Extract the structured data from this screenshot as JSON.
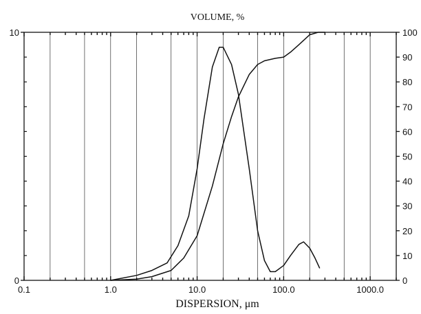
{
  "chart_data": {
    "type": "line",
    "title": "VOLUME, %",
    "xlabel": "DISPERSION, μm",
    "xscale": "log",
    "xlim": [
      0.1,
      2000
    ],
    "x_ticks": [
      0.1,
      1.0,
      10.0,
      100.0,
      1000.0
    ],
    "x_tick_labels": [
      "0.1",
      "1.0",
      "10.0",
      "100.0",
      "1000.0"
    ],
    "left_axis": {
      "range": [
        0,
        10
      ],
      "ticks": [
        0,
        10
      ],
      "tick_labels": [
        "0",
        "10"
      ]
    },
    "right_axis": {
      "range": [
        0,
        100
      ],
      "ticks": [
        0,
        10,
        20,
        30,
        40,
        50,
        60,
        70,
        80,
        90,
        100
      ],
      "tick_labels": [
        "0",
        "10",
        "20",
        "30",
        "40",
        "50",
        "60",
        "70",
        "80",
        "90",
        "100"
      ]
    },
    "grid": true,
    "series": [
      {
        "axis": "left",
        "x": [
          1.0,
          2.0,
          3.0,
          4.5,
          6.0,
          8.0,
          10.0,
          12.0,
          15.0,
          18.0,
          20.0,
          25.0,
          30.0,
          40.0,
          50.0,
          60.0,
          70.0,
          80.0,
          100.0,
          120.0,
          150.0,
          170.0,
          200.0,
          230.0,
          260.0
        ],
        "y": [
          0,
          0.2,
          0.4,
          0.7,
          1.4,
          2.6,
          4.5,
          6.5,
          8.6,
          9.4,
          9.4,
          8.7,
          7.5,
          4.5,
          2.0,
          0.8,
          0.35,
          0.35,
          0.6,
          1.0,
          1.45,
          1.55,
          1.3,
          0.9,
          0.5
        ]
      },
      {
        "axis": "right",
        "x": [
          1.0,
          2.0,
          3.0,
          5.0,
          7.0,
          10.0,
          15.0,
          20.0,
          25.0,
          30.0,
          40.0,
          50.0,
          60.0,
          80.0,
          100.0,
          120.0,
          150.0,
          200.0,
          250.0,
          300.0
        ],
        "y": [
          0,
          0.5,
          1.5,
          4,
          9,
          18,
          38,
          55,
          66,
          74,
          83,
          87,
          88.5,
          89.5,
          90,
          92,
          95,
          99,
          100,
          100
        ]
      }
    ]
  }
}
